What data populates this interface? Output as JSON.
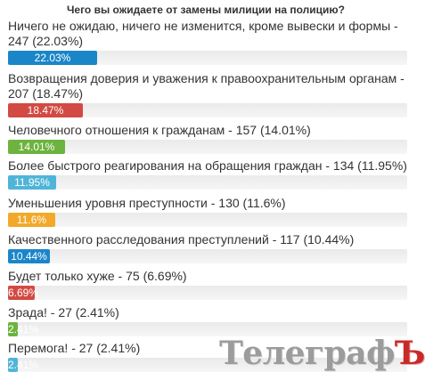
{
  "poll": {
    "title": "Чего вы ожидаете от замены милиции на полицию?",
    "answers": [
      {
        "label": "Ничего не ожидаю, ничего не изменится, кроме вывески и формы - 247 (22.03%)",
        "percent": 22.03,
        "bar_label": "22.03%",
        "color": "#1a86c8"
      },
      {
        "label": "Возвращения доверия и уважения к правоохранительным органам - 207 (18.47%)",
        "percent": 18.47,
        "bar_label": "18.47%",
        "color": "#d24a43"
      },
      {
        "label": "Человечного отношения к гражданам - 157 (14.01%)",
        "percent": 14.01,
        "bar_label": "14.01%",
        "color": "#6db33f"
      },
      {
        "label": "Более быстрого реагирования на обращения граждан - 134 (11.95%)",
        "percent": 11.95,
        "bar_label": "11.95%",
        "color": "#4fb5d8"
      },
      {
        "label": "Уменьшения уровня преступности - 130 (11.6%)",
        "percent": 11.6,
        "bar_label": "11.6%",
        "color": "#f2a92a"
      },
      {
        "label": "Качественного расследования преступлений - 117 (10.44%)",
        "percent": 10.44,
        "bar_label": "10.44%",
        "color": "#1a86c8"
      },
      {
        "label": "Будет только хуже - 75 (6.69%)",
        "percent": 6.69,
        "bar_label": "6.69%",
        "color": "#d24a43"
      },
      {
        "label": "Зрада! - 27 (2.41%)",
        "percent": 2.41,
        "bar_label": "2.41%",
        "color": "#6db33f"
      },
      {
        "label": "Перемога! - 27 (2.41%)",
        "percent": 2.41,
        "bar_label": "2.41%",
        "color": "#4fb5d8"
      }
    ]
  },
  "logo": {
    "main": "Телеграф",
    "end": "Ъ"
  }
}
